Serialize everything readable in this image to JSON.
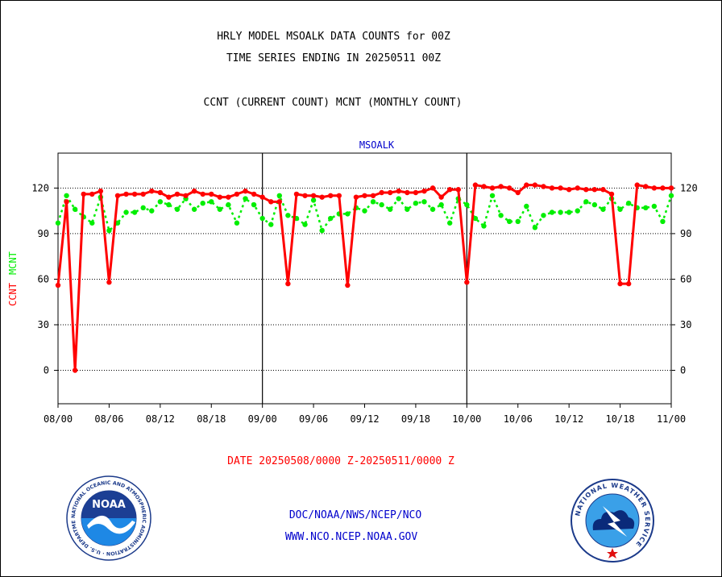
{
  "header": {
    "title_line1": "HRLY MODEL MSOALK DATA COUNTS for 00Z",
    "title_line2": "TIME SERIES ENDING IN 20250511 00Z",
    "subtitle": "CCNT (CURRENT COUNT) MCNT (MONTHLY COUNT)"
  },
  "footer": {
    "date_range": "DATE 20250508/0000 Z-20250511/0000 Z",
    "org_path": "DOC/NOAA/NWS/NCEP/NCO",
    "website": "WWW.NCO.NCEP.NOAA.GOV"
  },
  "logos": {
    "noaa_ring_text": "NATIONAL OCEANIC AND ATMOSPHERIC ADMINISTRATION · U.S. DEPARTMENT OF COMMERCE",
    "noaa_center": "NOAA",
    "nws_ring_text": "NATIONAL WEATHER SERVICE"
  },
  "colors": {
    "ccnt": "#ff0000",
    "mcnt": "#00ee00",
    "station_label": "#0000cc",
    "footer_link": "#0000cc"
  },
  "chart_data": {
    "type": "line",
    "title": "MSOALK",
    "ylabel_parts": [
      "CCNT",
      "MCNT"
    ],
    "xticks": [
      "08/00",
      "08/06",
      "08/12",
      "08/18",
      "09/00",
      "09/06",
      "09/12",
      "09/18",
      "10/00",
      "10/06",
      "10/12",
      "10/18",
      "11/00"
    ],
    "x_day_boundaries": [
      24,
      48
    ],
    "ylim": [
      -22,
      143
    ],
    "yticks": [
      0,
      30,
      60,
      90,
      120
    ],
    "grid": true,
    "x_hours": [
      0,
      1,
      2,
      3,
      4,
      5,
      6,
      7,
      8,
      9,
      10,
      11,
      12,
      13,
      14,
      15,
      16,
      17,
      18,
      19,
      20,
      21,
      22,
      23,
      24,
      25,
      26,
      27,
      28,
      29,
      30,
      31,
      32,
      33,
      34,
      35,
      36,
      37,
      38,
      39,
      40,
      41,
      42,
      43,
      44,
      45,
      46,
      47,
      48,
      49,
      50,
      51,
      52,
      53,
      54,
      55,
      56,
      57,
      58,
      59,
      60,
      61,
      62,
      63,
      64,
      65,
      66,
      67,
      68,
      69,
      70,
      71,
      72
    ],
    "series": [
      {
        "name": "CCNT",
        "values": [
          56,
          111,
          0,
          116,
          116,
          118,
          58,
          115,
          116,
          116,
          116,
          118,
          117,
          114,
          116,
          115,
          118,
          116,
          116,
          114,
          114,
          116,
          118,
          116,
          114,
          111,
          111,
          57,
          116,
          115,
          115,
          114,
          115,
          115,
          56,
          114,
          115,
          115,
          117,
          117,
          118,
          117,
          117,
          118,
          120,
          114,
          119,
          119,
          58,
          122,
          121,
          120,
          121,
          120,
          117,
          122,
          122,
          121,
          120,
          120,
          119,
          120,
          119,
          119,
          119,
          116,
          57,
          57,
          122,
          121,
          120,
          120,
          120
        ]
      },
      {
        "name": "MCNT",
        "values": [
          97,
          115,
          106,
          101,
          97,
          114,
          92,
          97,
          104,
          104,
          107,
          105,
          111,
          109,
          106,
          113,
          106,
          110,
          111,
          106,
          109,
          97,
          113,
          109,
          100,
          96,
          115,
          102,
          100,
          96,
          112,
          92,
          100,
          103,
          103,
          107,
          105,
          111,
          109,
          106,
          113,
          106,
          110,
          111,
          106,
          109,
          97,
          113,
          109,
          100,
          95,
          115,
          102,
          98,
          98,
          108,
          94,
          102,
          104,
          104,
          104,
          105,
          111,
          109,
          106,
          113,
          106,
          110,
          107,
          107,
          108,
          98,
          115
        ]
      }
    ]
  }
}
